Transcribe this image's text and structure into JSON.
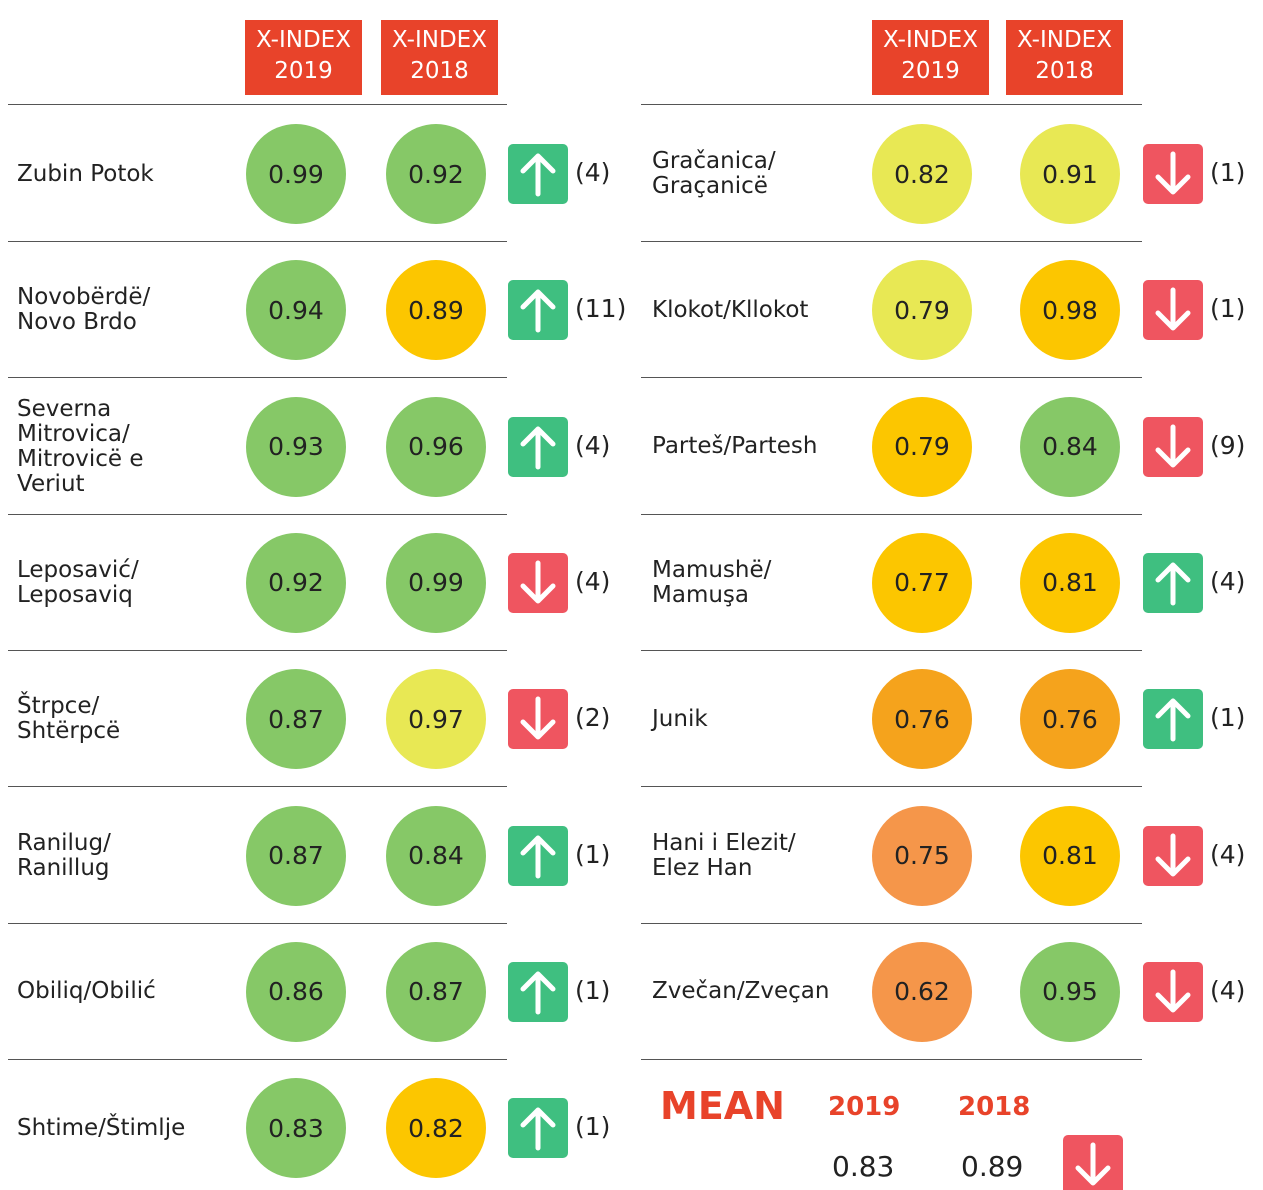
{
  "headers": [
    "X-INDEX\n2019",
    "X-INDEX\n2018"
  ],
  "colors": {
    "header": "#e8432a",
    "up": "#3fbf80",
    "down": "#ef5560",
    "mean": "#e8432a"
  },
  "left": [
    {
      "name": "Zubin Potok",
      "v2019": 0.99,
      "c2019": "#86c867",
      "v2018": 0.92,
      "c2018": "#86c867",
      "arrow": "up",
      "change": "(4)"
    },
    {
      "name": "Novobërdë/\nNovo Brdo",
      "v2019": 0.94,
      "c2019": "#86c867",
      "v2018": 0.89,
      "c2018": "#fcc600",
      "arrow": "up",
      "change": "(11)"
    },
    {
      "name": "Severna\nMitrovica/\nMitrovicë e\nVeriut",
      "v2019": 0.93,
      "c2019": "#86c867",
      "v2018": 0.96,
      "c2018": "#86c867",
      "arrow": "up",
      "change": "(4)"
    },
    {
      "name": "Leposavić/\nLeposaviq",
      "v2019": 0.92,
      "c2019": "#86c867",
      "v2018": 0.99,
      "c2018": "#86c867",
      "arrow": "down",
      "change": "(4)"
    },
    {
      "name": "Štrpce/\nShtërpcë",
      "v2019": 0.87,
      "c2019": "#86c867",
      "v2018": 0.97,
      "c2018": "#e8e854",
      "arrow": "down",
      "change": "(2)"
    },
    {
      "name": "Ranilug/\nRanillug",
      "v2019": 0.87,
      "c2019": "#86c867",
      "v2018": 0.84,
      "c2018": "#86c867",
      "arrow": "up",
      "change": "(1)"
    },
    {
      "name": "Obiliq/Obilić",
      "v2019": 0.86,
      "c2019": "#86c867",
      "v2018": 0.87,
      "c2018": "#86c867",
      "arrow": "up",
      "change": "(1)"
    },
    {
      "name": "Shtime/Štimlje",
      "v2019": 0.83,
      "c2019": "#86c867",
      "v2018": 0.82,
      "c2018": "#fcc600",
      "arrow": "up",
      "change": "(1)"
    }
  ],
  "right": [
    {
      "name": "Gračanica/\nGraçanicë",
      "v2019": 0.82,
      "c2019": "#e8e854",
      "v2018": 0.91,
      "c2018": "#e8e854",
      "arrow": "down",
      "change": "(1)"
    },
    {
      "name": "Klokot/Kllokot",
      "v2019": 0.79,
      "c2019": "#e8e854",
      "v2018": 0.98,
      "c2018": "#fcc600",
      "arrow": "down",
      "change": "(1)"
    },
    {
      "name": "Parteš/Partesh",
      "v2019": 0.79,
      "c2019": "#fcc600",
      "v2018": 0.84,
      "c2018": "#86c867",
      "arrow": "down",
      "change": "(9)"
    },
    {
      "name": "Mamushë/\nMamuşa",
      "v2019": 0.77,
      "c2019": "#fcc600",
      "v2018": 0.81,
      "c2018": "#fcc600",
      "arrow": "up",
      "change": "(4)"
    },
    {
      "name": "Junik",
      "v2019": 0.76,
      "c2019": "#f5a31c",
      "v2018": 0.76,
      "c2018": "#f5a31c",
      "arrow": "up",
      "change": "(1)"
    },
    {
      "name": "Hani i Elezit/\nElez Han",
      "v2019": 0.75,
      "c2019": "#f5964a",
      "v2018": 0.81,
      "c2018": "#fcc600",
      "arrow": "down",
      "change": "(4)"
    },
    {
      "name": "Zvečan/Zveçan",
      "v2019": 0.62,
      "c2019": "#f5964a",
      "v2018": 0.95,
      "c2018": "#86c867",
      "arrow": "down",
      "change": "(4)"
    }
  ],
  "mean": {
    "title": "MEAN",
    "y2019": "2019",
    "y2018": "2018",
    "v2019": 0.83,
    "v2018": 0.89,
    "arrow": "down"
  }
}
